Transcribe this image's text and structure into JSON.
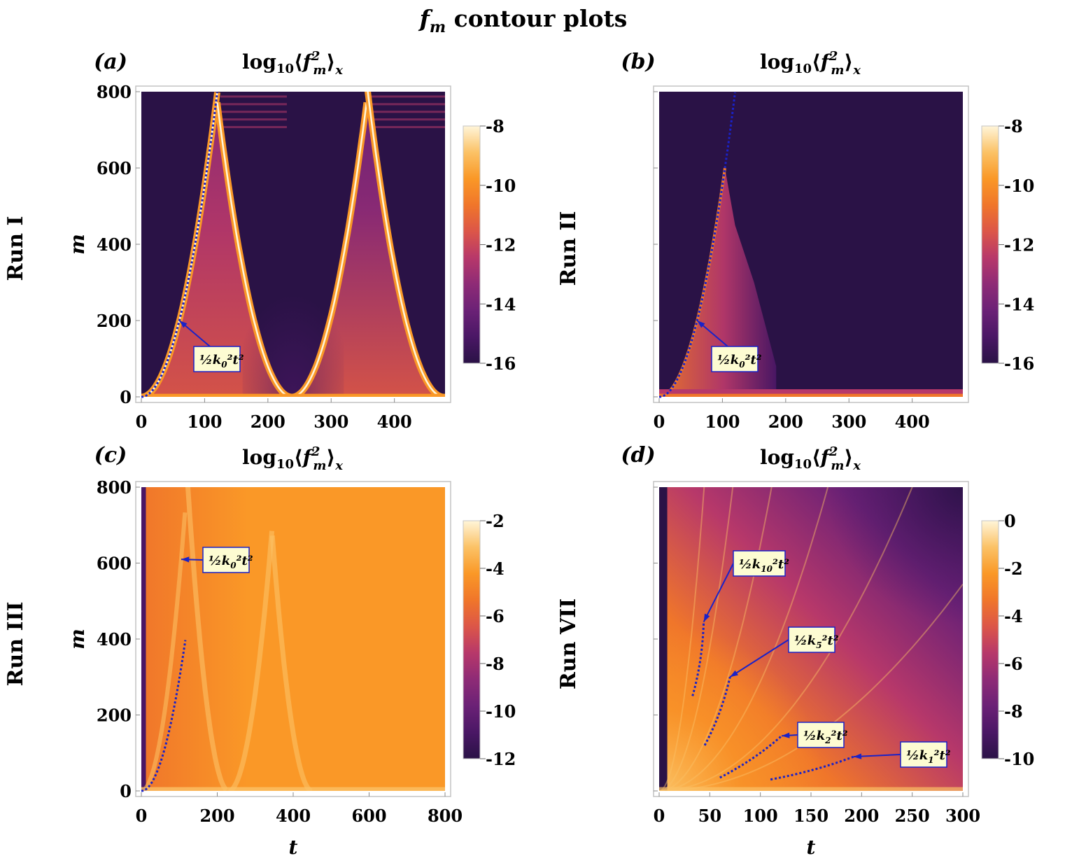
{
  "figure": {
    "title": "f_m contour plots",
    "title_base": "f",
    "title_sub": "m",
    "title_rest": " contour plots"
  },
  "colors": {
    "c0": "#2a1246",
    "c1": "#4a1765",
    "c2": "#6b2176",
    "c3": "#8e2b76",
    "c4": "#b7386a",
    "c5": "#dc5648",
    "c6": "#f0762a",
    "c7": "#fa9827",
    "c8": "#fbc266",
    "c9": "#fff5d9",
    "guide": "#1a22c8",
    "label_bg": "#fdfcd2",
    "frame": "#c4c4c4"
  },
  "chart_data": [
    {
      "type": "heatmap",
      "panel": "(a)",
      "row_label": "Run I",
      "title": "log10⟨f_m^2⟩_x",
      "xlabel": "",
      "ylabel": "m",
      "xlim": [
        0,
        480
      ],
      "ylim": [
        0,
        800
      ],
      "xticks": [
        0,
        100,
        200,
        300,
        400
      ],
      "yticks": [
        0,
        200,
        400,
        600,
        800
      ],
      "colorbar": {
        "min": -16,
        "max": -8,
        "ticks": [
          -8,
          -10,
          -12,
          -14,
          -16
        ]
      },
      "annotations": [
        {
          "base": "½k",
          "sub": "0",
          "tail": "²t²",
          "point": [
            60,
            200
          ]
        }
      ]
    },
    {
      "type": "heatmap",
      "panel": "(b)",
      "row_label": "Run II",
      "title": "log10⟨f_m^2⟩_x",
      "xlabel": "",
      "ylabel": "",
      "xlim": [
        0,
        480
      ],
      "ylim": [
        0,
        800
      ],
      "xticks": [
        0,
        100,
        200,
        300,
        400
      ],
      "yticks": [],
      "colorbar": {
        "min": -16,
        "max": -8,
        "ticks": [
          -8,
          -10,
          -12,
          -14,
          -16
        ]
      },
      "annotations": [
        {
          "base": "½k",
          "sub": "0",
          "tail": "²t²",
          "point": [
            60,
            200
          ]
        }
      ]
    },
    {
      "type": "heatmap",
      "panel": "(c)",
      "row_label": "Run III",
      "title": "log10⟨f_m^2⟩_x",
      "xlabel": "t",
      "ylabel": "m",
      "xlim": [
        0,
        800
      ],
      "ylim": [
        0,
        800
      ],
      "xticks": [
        0,
        200,
        400,
        600,
        800
      ],
      "yticks": [
        0,
        200,
        400,
        600,
        800
      ],
      "colorbar": {
        "min": -12,
        "max": -2,
        "ticks": [
          -2,
          -4,
          -6,
          -8,
          -10,
          -12
        ]
      },
      "annotations": [
        {
          "base": "½k",
          "sub": "0",
          "tail": "²t²",
          "point": [
            105,
            610
          ]
        }
      ]
    },
    {
      "type": "heatmap",
      "panel": "(d)",
      "row_label": "Run VII",
      "title": "log10⟨f_m^2⟩_x",
      "xlabel": "t",
      "ylabel": "",
      "xlim": [
        0,
        300
      ],
      "ylim": [
        0,
        800
      ],
      "xticks": [
        0,
        50,
        100,
        150,
        200,
        250,
        300
      ],
      "yticks": [],
      "colorbar": {
        "min": -10,
        "max": 0,
        "ticks": [
          0,
          -2,
          -4,
          -6,
          -8,
          -10
        ]
      },
      "annotations": [
        {
          "base": "½k",
          "sub": "10",
          "tail": "²t²",
          "point": [
            44,
            445
          ]
        },
        {
          "base": "½k",
          "sub": "5",
          "tail": "²t²",
          "point": [
            70,
            300
          ]
        },
        {
          "base": "½k",
          "sub": "2",
          "tail": "²t²",
          "point": [
            121,
            145
          ]
        },
        {
          "base": "½k",
          "sub": "1",
          "tail": "²t²",
          "point": [
            192,
            90
          ]
        }
      ]
    }
  ]
}
